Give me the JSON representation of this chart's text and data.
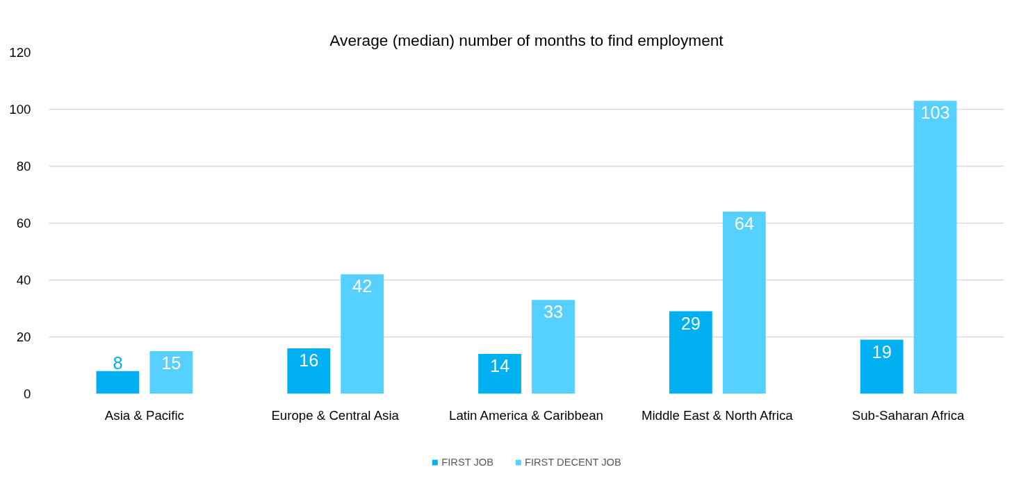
{
  "chart_data": {
    "type": "bar",
    "title": "Average (median) number of months to find employment",
    "categories": [
      "Asia & Pacific",
      "Europe & Central Asia",
      "Latin America & Caribbean",
      "Middle East & North Africa",
      "Sub-Saharan Africa"
    ],
    "series": [
      {
        "name": "FIRST JOB",
        "color": "#00b0f0",
        "values": [
          8,
          16,
          14,
          29,
          19
        ]
      },
      {
        "name": "FIRST DECENT JOB",
        "color": "#55d0ff",
        "values": [
          15,
          42,
          33,
          64,
          103
        ]
      }
    ],
    "ylim": [
      0,
      120
    ],
    "yticks": [
      0,
      20,
      40,
      60,
      80,
      100,
      120
    ],
    "grid": "y",
    "legend": "bottom",
    "data_labels": true
  }
}
